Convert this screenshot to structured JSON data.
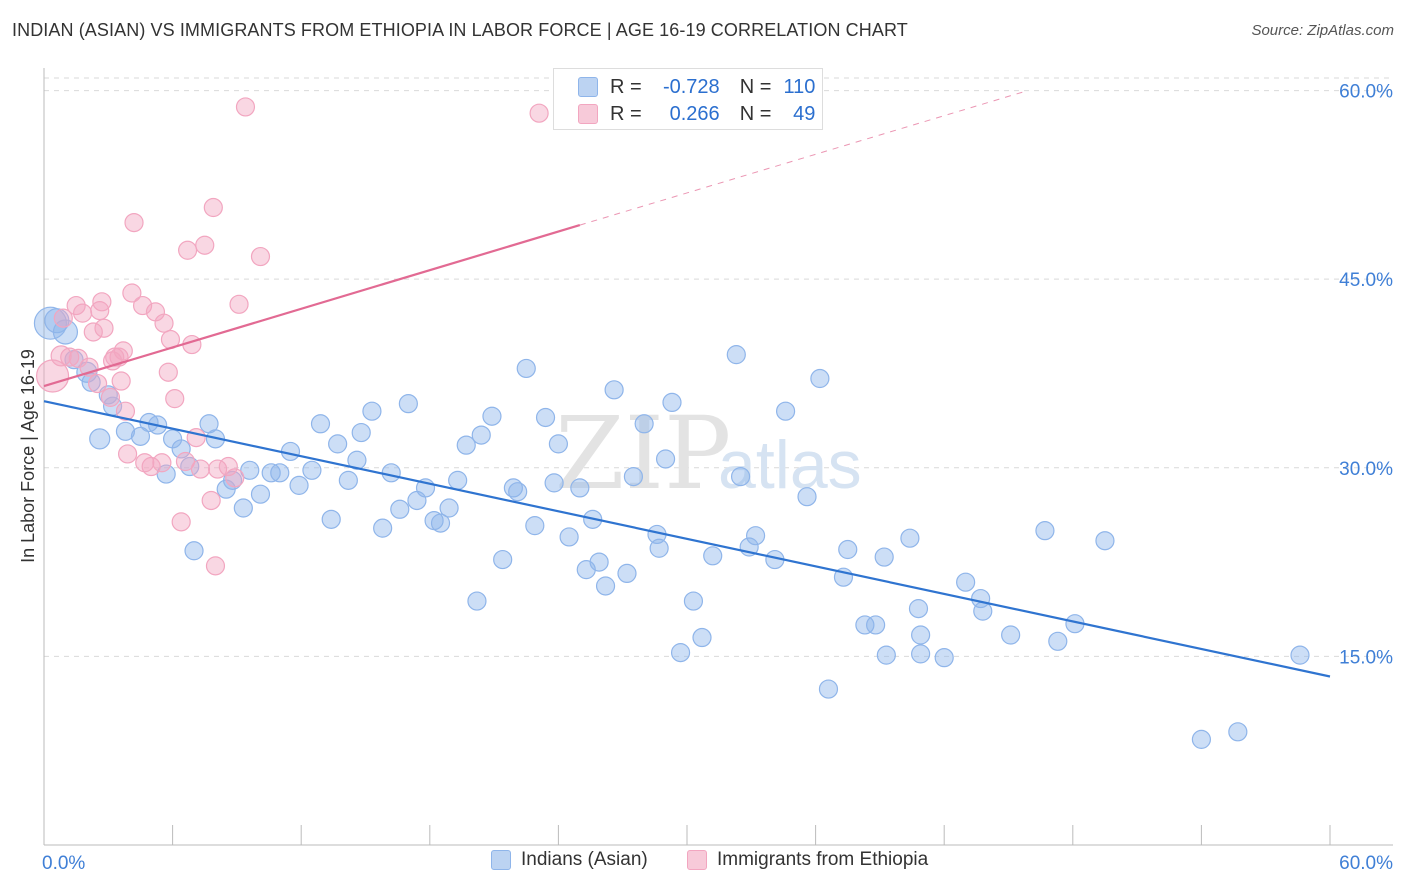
{
  "title": "INDIAN (ASIAN) VS IMMIGRANTS FROM ETHIOPIA IN LABOR FORCE | AGE 16-19 CORRELATION CHART",
  "source": "Source: ZipAtlas.com",
  "watermark": {
    "zip": "ZIP",
    "atlas": "atlas"
  },
  "stats": [
    {
      "r_label": "R =",
      "r_value": "-0.728",
      "n_label": "N =",
      "n_value": "110",
      "color": "#8fb5ea"
    },
    {
      "r_label": "R =",
      "r_value": "0.266",
      "n_label": "N =",
      "n_value": "49",
      "color": "#f2a6c0"
    }
  ],
  "legend": [
    {
      "label": "Indians (Asian)",
      "color": "#8fb5ea"
    },
    {
      "label": "Immigrants from Ethiopia",
      "color": "#f2a6c0"
    }
  ],
  "chart_data": {
    "type": "scatter",
    "title": "INDIAN (ASIAN) VS IMMIGRANTS FROM ETHIOPIA IN LABOR FORCE | AGE 16-19 CORRELATION CHART",
    "xlabel": "",
    "ylabel": "In Labor Force | Age 16-19",
    "xlim": [
      0,
      60
    ],
    "ylim": [
      0,
      61
    ],
    "x_tick_labels": [
      "0.0%",
      "60.0%"
    ],
    "y_ticks": [
      15,
      30,
      45,
      60
    ],
    "y_tick_labels": [
      "15.0%",
      "30.0%",
      "45.0%",
      "60.0%"
    ],
    "grid": true,
    "legend_position": "bottom-center",
    "series": [
      {
        "name": "Indians (Asian)",
        "color": "#8fb5ea",
        "line_color": "#2f74d0",
        "trend": {
          "x0": 0,
          "y0": 35.3,
          "x1": 60,
          "y1": 13.4,
          "dash_to": 60
        },
        "points": [
          [
            0.3,
            41.5,
            16
          ],
          [
            0.6,
            41.7,
            12
          ],
          [
            1,
            40.8,
            12
          ],
          [
            1.4,
            38.6,
            9
          ],
          [
            2,
            37.6,
            10
          ],
          [
            2.2,
            36.8,
            9
          ],
          [
            3,
            35.8,
            9
          ],
          [
            3.2,
            34.9,
            9
          ],
          [
            2.6,
            32.3,
            10
          ],
          [
            3.8,
            32.9,
            9
          ],
          [
            4.5,
            32.5,
            9
          ],
          [
            4.9,
            33.6,
            9
          ],
          [
            5.3,
            33.4,
            9
          ],
          [
            5.7,
            29.5,
            9
          ],
          [
            6,
            32.3,
            9
          ],
          [
            6.4,
            31.5,
            9
          ],
          [
            6.8,
            30.1,
            9
          ],
          [
            7.7,
            33.5,
            9
          ],
          [
            8,
            32.3,
            9
          ],
          [
            8.5,
            28.3,
            9
          ],
          [
            8.8,
            29,
            9
          ],
          [
            9.3,
            26.8,
            9
          ],
          [
            9.6,
            29.8,
            9
          ],
          [
            10.1,
            27.9,
            9
          ],
          [
            10.6,
            29.6,
            9
          ],
          [
            11,
            29.6,
            9
          ],
          [
            11.5,
            31.3,
            9
          ],
          [
            11.9,
            28.6,
            9
          ],
          [
            12.5,
            29.8,
            9
          ],
          [
            12.9,
            33.5,
            9
          ],
          [
            13.4,
            25.9,
            9
          ],
          [
            13.7,
            31.9,
            9
          ],
          [
            14.2,
            29,
            9
          ],
          [
            14.6,
            30.6,
            9
          ],
          [
            14.8,
            32.8,
            9
          ],
          [
            15.3,
            34.5,
            9
          ],
          [
            15.8,
            25.2,
            9
          ],
          [
            16.2,
            29.6,
            9
          ],
          [
            16.6,
            26.7,
            9
          ],
          [
            17,
            35.1,
            9
          ],
          [
            17.4,
            27.4,
            9
          ],
          [
            17.8,
            28.4,
            9
          ],
          [
            18.2,
            25.8,
            9
          ],
          [
            18.5,
            25.6,
            9
          ],
          [
            18.9,
            26.8,
            9
          ],
          [
            19.3,
            29,
            9
          ],
          [
            19.7,
            31.8,
            9
          ],
          [
            20.2,
            19.4,
            9
          ],
          [
            20.4,
            32.6,
            9
          ],
          [
            20.9,
            34.1,
            9
          ],
          [
            21.4,
            22.7,
            9
          ],
          [
            21.9,
            28.4,
            9
          ],
          [
            22.1,
            28.1,
            9
          ],
          [
            22.5,
            37.9,
            9
          ],
          [
            22.9,
            25.4,
            9
          ],
          [
            23.4,
            34,
            9
          ],
          [
            23.8,
            28.8,
            9
          ],
          [
            24,
            31.9,
            9
          ],
          [
            24.5,
            24.5,
            9
          ],
          [
            25,
            28.4,
            9
          ],
          [
            25.3,
            21.9,
            9
          ],
          [
            25.6,
            25.9,
            9
          ],
          [
            25.9,
            22.5,
            9
          ],
          [
            26.2,
            20.6,
            9
          ],
          [
            26.6,
            36.2,
            9
          ],
          [
            27.2,
            21.6,
            9
          ],
          [
            27.5,
            29.3,
            9
          ],
          [
            28,
            33.5,
            9
          ],
          [
            28.6,
            24.7,
            9
          ],
          [
            28.7,
            23.6,
            9
          ],
          [
            29,
            30.7,
            9
          ],
          [
            29.3,
            35.2,
            9
          ],
          [
            29.7,
            15.3,
            9
          ],
          [
            30.3,
            19.4,
            9
          ],
          [
            30.7,
            16.5,
            9
          ],
          [
            31.2,
            23,
            9
          ],
          [
            32.3,
            39,
            9
          ],
          [
            32.5,
            29.3,
            9
          ],
          [
            32.9,
            23.7,
            9
          ],
          [
            33.2,
            24.6,
            9
          ],
          [
            34.1,
            22.7,
            9
          ],
          [
            34.6,
            34.5,
            9
          ],
          [
            35.6,
            27.7,
            9
          ],
          [
            36.2,
            37.1,
            9
          ],
          [
            36.6,
            12.4,
            9
          ],
          [
            37.3,
            21.3,
            9
          ],
          [
            37.5,
            23.5,
            9
          ],
          [
            38.3,
            17.5,
            9
          ],
          [
            38.8,
            17.5,
            9
          ],
          [
            39.2,
            22.9,
            9
          ],
          [
            39.3,
            15.1,
            9
          ],
          [
            40.4,
            24.4,
            9
          ],
          [
            40.8,
            18.8,
            9
          ],
          [
            40.9,
            16.7,
            9
          ],
          [
            40.9,
            15.2,
            9
          ],
          [
            42,
            14.9,
            9
          ],
          [
            43,
            20.9,
            9
          ],
          [
            43.7,
            19.6,
            9
          ],
          [
            43.8,
            18.6,
            9
          ],
          [
            45.1,
            16.7,
            9
          ],
          [
            46.7,
            25,
            9
          ],
          [
            47.3,
            16.2,
            9
          ],
          [
            48.1,
            17.6,
            9
          ],
          [
            49.5,
            24.2,
            9
          ],
          [
            54,
            8.4,
            9
          ],
          [
            55.7,
            9,
            9
          ],
          [
            58.6,
            15.1,
            9
          ],
          [
            7,
            23.4,
            9
          ]
        ]
      },
      {
        "name": "Immigrants from Ethiopia",
        "color": "#f2a6c0",
        "line_color": "#e26a93",
        "trend": {
          "x0": 0,
          "y0": 36.5,
          "x1": 25,
          "y1": 49.3,
          "dash_to": 45.7
        },
        "points": [
          [
            0.4,
            37.3,
            16
          ],
          [
            0.8,
            38.9,
            10
          ],
          [
            0.9,
            41.9,
            9
          ],
          [
            1.2,
            38.8,
            9
          ],
          [
            1.5,
            42.9,
            9
          ],
          [
            1.6,
            38.7,
            9
          ],
          [
            1.8,
            42.3,
            9
          ],
          [
            2.1,
            38,
            9
          ],
          [
            2.3,
            40.8,
            9
          ],
          [
            2.5,
            36.7,
            9
          ],
          [
            2.6,
            42.5,
            9
          ],
          [
            2.7,
            43.2,
            9
          ],
          [
            2.8,
            41.1,
            9
          ],
          [
            3.1,
            35.6,
            9
          ],
          [
            3.3,
            38.8,
            9
          ],
          [
            3.5,
            38.8,
            9
          ],
          [
            3.6,
            36.9,
            9
          ],
          [
            3.7,
            39.3,
            9
          ],
          [
            3.8,
            34.5,
            9
          ],
          [
            3.9,
            31.1,
            9
          ],
          [
            4.1,
            43.9,
            9
          ],
          [
            4.2,
            49.5,
            9
          ],
          [
            4.6,
            42.9,
            9
          ],
          [
            4.7,
            30.4,
            9
          ],
          [
            5,
            30.1,
            9
          ],
          [
            5.2,
            42.4,
            9
          ],
          [
            5.5,
            30.4,
            9
          ],
          [
            5.6,
            41.5,
            9
          ],
          [
            5.9,
            40.2,
            9
          ],
          [
            6.1,
            35.5,
            9
          ],
          [
            6.4,
            25.7,
            9
          ],
          [
            6.6,
            30.5,
            9
          ],
          [
            6.7,
            47.3,
            9
          ],
          [
            6.9,
            39.8,
            9
          ],
          [
            7.1,
            32.4,
            9
          ],
          [
            7.3,
            29.9,
            9
          ],
          [
            7.5,
            47.7,
            9
          ],
          [
            7.8,
            27.4,
            9
          ],
          [
            7.9,
            50.7,
            9
          ],
          [
            8,
            22.2,
            9
          ],
          [
            8.1,
            29.9,
            9
          ],
          [
            8.6,
            30.1,
            9
          ],
          [
            8.9,
            29.2,
            9
          ],
          [
            9.1,
            43,
            9
          ],
          [
            9.4,
            58.7,
            9
          ],
          [
            10.1,
            46.8,
            9
          ],
          [
            23.1,
            58.2,
            9
          ],
          [
            3.2,
            38.5,
            9
          ],
          [
            5.8,
            37.6,
            9
          ]
        ]
      }
    ]
  }
}
